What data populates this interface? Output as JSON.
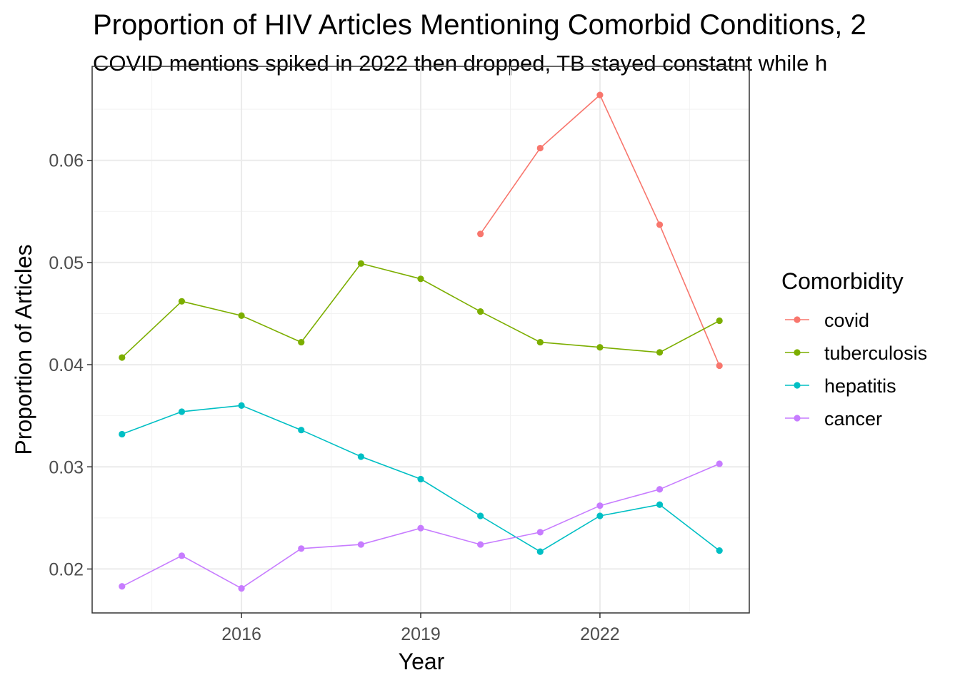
{
  "chart_data": {
    "type": "line",
    "title": "Proportion of HIV Articles Mentioning Comorbid Conditions, 2",
    "subtitle": "COVID mentions spiked in 2022 then dropped, TB stayed constatnt while h",
    "xlabel": "Year",
    "ylabel": "Proportion of Articles",
    "xlim": [
      2013.5,
      2024.5
    ],
    "ylim": [
      0.0157,
      0.0692
    ],
    "x_ticks": [
      2016,
      2019,
      2022
    ],
    "y_ticks": [
      0.02,
      0.03,
      0.04,
      0.05,
      0.06
    ],
    "y_tick_labels": [
      "0.02",
      "0.03",
      "0.04",
      "0.05",
      "0.06"
    ],
    "grid": true,
    "legend": {
      "title": "Comorbidity",
      "position": "right"
    },
    "series": [
      {
        "name": "covid",
        "color": "#F8766D",
        "x": [
          2020,
          2021,
          2022,
          2023,
          2024
        ],
        "y": [
          0.0528,
          0.0612,
          0.0664,
          0.0537,
          0.0399
        ]
      },
      {
        "name": "tuberculosis",
        "color": "#7CAE00",
        "x": [
          2014,
          2015,
          2016,
          2017,
          2018,
          2019,
          2020,
          2021,
          2022,
          2023,
          2024
        ],
        "y": [
          0.0407,
          0.0462,
          0.0448,
          0.0422,
          0.0499,
          0.0484,
          0.0452,
          0.0422,
          0.0417,
          0.0412,
          0.0443
        ]
      },
      {
        "name": "hepatitis",
        "color": "#00BFC4",
        "x": [
          2014,
          2015,
          2016,
          2017,
          2018,
          2019,
          2020,
          2021,
          2022,
          2023,
          2024
        ],
        "y": [
          0.0332,
          0.0354,
          0.036,
          0.0336,
          0.031,
          0.0288,
          0.0252,
          0.0217,
          0.0252,
          0.0263,
          0.0218
        ]
      },
      {
        "name": "cancer",
        "color": "#C77CFF",
        "x": [
          2014,
          2015,
          2016,
          2017,
          2018,
          2019,
          2020,
          2021,
          2022,
          2023,
          2024
        ],
        "y": [
          0.0183,
          0.0213,
          0.0181,
          0.022,
          0.0224,
          0.024,
          0.0224,
          0.0236,
          0.0262,
          0.0278,
          0.0303
        ]
      }
    ]
  }
}
